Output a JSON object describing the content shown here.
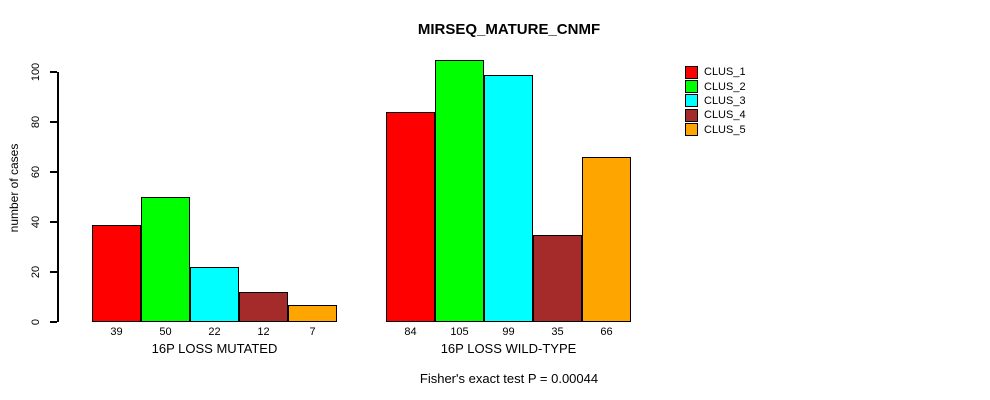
{
  "chart_data": {
    "type": "bar",
    "title": "MIRSEQ_MATURE_CNMF",
    "ylabel": "number of cases",
    "xlabel": "",
    "annotation": "Fisher's exact test P = 0.00044",
    "ylim": [
      0,
      100
    ],
    "yticks": [
      "0",
      "20",
      "40",
      "60",
      "80",
      "100"
    ],
    "grid": false,
    "legend_position": "right",
    "series": [
      {
        "name": "CLUS_1",
        "color": "#FF0000"
      },
      {
        "name": "CLUS_2",
        "color": "#00FF00"
      },
      {
        "name": "CLUS_3",
        "color": "#00FFFF"
      },
      {
        "name": "CLUS_4",
        "color": "#A52A2A"
      },
      {
        "name": "CLUS_5",
        "color": "#FFA500"
      }
    ],
    "groups": [
      {
        "label": "16P LOSS MUTATED",
        "values": [
          39,
          50,
          22,
          12,
          7
        ],
        "value_labels": [
          "39",
          "50",
          "22",
          "12",
          "7"
        ]
      },
      {
        "label": "16P LOSS WILD-TYPE",
        "values": [
          84,
          105,
          99,
          35,
          66
        ],
        "value_labels": [
          "84",
          "105",
          "99",
          "35",
          "66"
        ]
      }
    ]
  }
}
